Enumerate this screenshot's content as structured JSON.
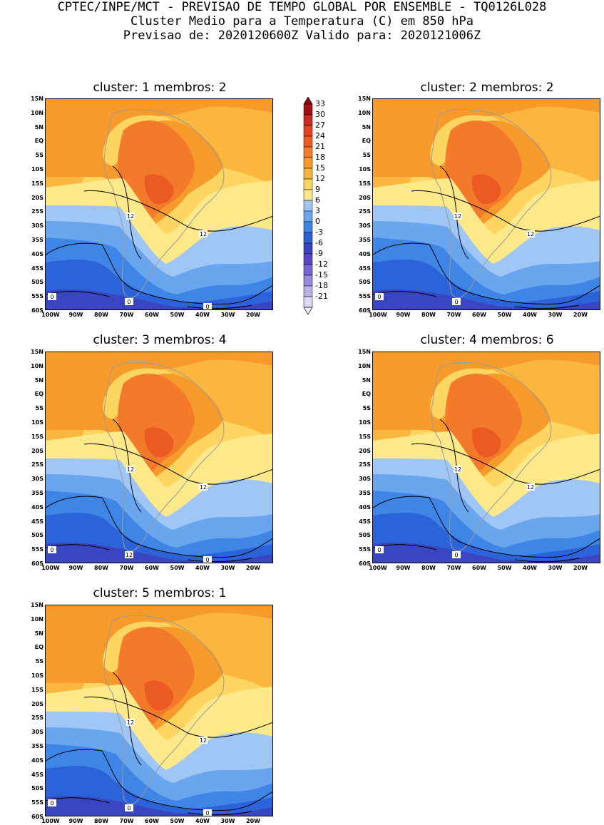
{
  "header": {
    "line1": "CPTEC/INPE/MCT - PREVISAO DE TEMPO GLOBAL POR ENSEMBLE - TQ0126L028",
    "line2": "Cluster Medio para a Temperatura (C) em 850 hPa",
    "line3": "Previsao de: 2020120600Z   Valido para: 2020121006Z"
  },
  "lat_labels": [
    "15N",
    "10N",
    "5N",
    "EQ",
    "5S",
    "10S",
    "15S",
    "20S",
    "25S",
    "30S",
    "35S",
    "40S",
    "45S",
    "50S",
    "55S",
    "60S"
  ],
  "lon_labels": [
    "100W",
    "90W",
    "80W",
    "70W",
    "60W",
    "50W",
    "40W",
    "30W",
    "20W"
  ],
  "colorbar": {
    "labels": [
      "33",
      "30",
      "27",
      "24",
      "21",
      "18",
      "15",
      "12",
      "9",
      "6",
      "3",
      "0",
      "-3",
      "-6",
      "-9",
      "-12",
      "-15",
      "-18",
      "-21"
    ],
    "colors": [
      "#a50f15",
      "#cb2a1f",
      "#e2421f",
      "#ec5a24",
      "#f37a2a",
      "#f79a2c",
      "#fbb63e",
      "#fdd560",
      "#fde88a",
      "#9fc6f4",
      "#6aa6ee",
      "#3f85e6",
      "#2d63d8",
      "#3a45c2",
      "#5a48c9",
      "#7a66d4",
      "#9a89de",
      "#bbb0e8",
      "#dcd6f3"
    ]
  },
  "panels": [
    {
      "title": "cluster: 1   membros: 2",
      "contours": [
        "12",
        "12",
        "0",
        "0",
        "0"
      ]
    },
    {
      "title": "cluster: 2   membros: 2",
      "contours": [
        "12",
        "12",
        "0",
        "0"
      ]
    },
    {
      "title": "cluster: 3   membros: 4",
      "contours": [
        "12",
        "12",
        "12",
        "0",
        "0"
      ]
    },
    {
      "title": "cluster: 4   membros: 6",
      "contours": [
        "12",
        "12",
        "0",
        "0"
      ]
    },
    {
      "title": "cluster: 5   membros: 1",
      "contours": [
        "12",
        "12",
        "0",
        "0",
        "0"
      ]
    }
  ]
}
